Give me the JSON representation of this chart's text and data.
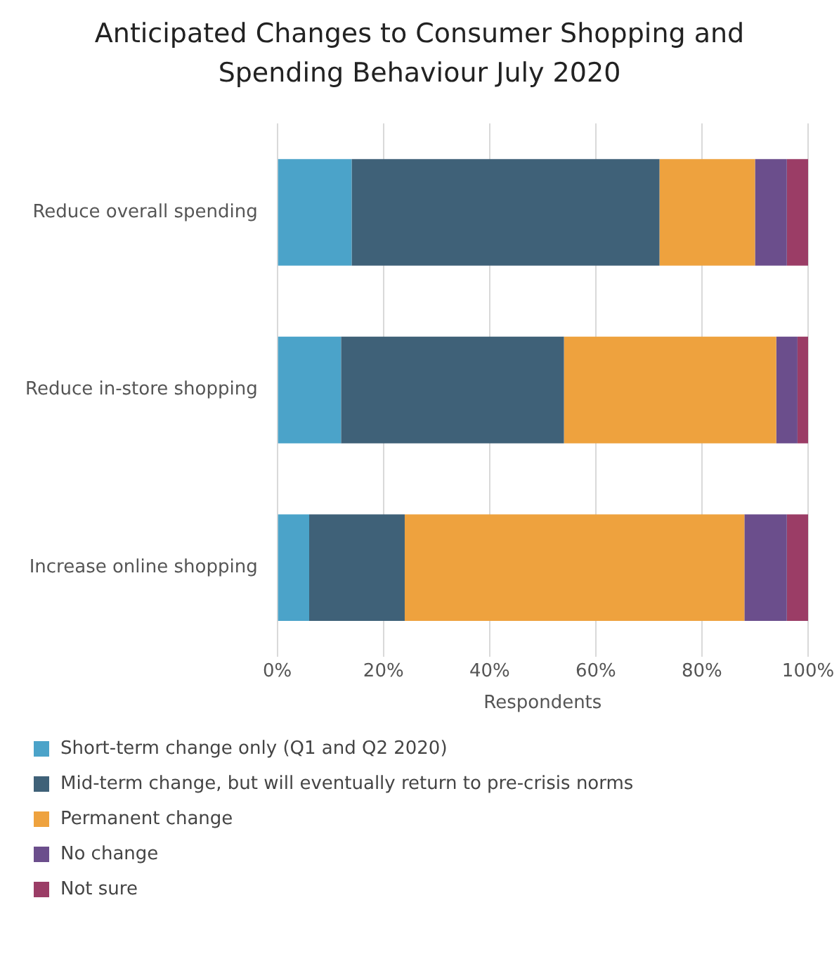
{
  "chart_data": {
    "type": "bar",
    "orientation": "horizontal",
    "stacked": true,
    "title": "Anticipated Changes to Consumer Shopping and Spending Behaviour July 2020",
    "xlabel": "Respondents",
    "categories": [
      "Reduce overall spending",
      "Reduce in-store shopping",
      "Increase online shopping"
    ],
    "series": [
      {
        "name": "Short-term change only (Q1 and Q2 2020)",
        "color": "#4ba3c9",
        "values": [
          14,
          12,
          6
        ]
      },
      {
        "name": "Mid-term change, but will eventually return to pre-crisis norms",
        "color": "#3f6178",
        "values": [
          58,
          42,
          18
        ]
      },
      {
        "name": "Permanent change",
        "color": "#eea23e",
        "values": [
          18,
          40,
          64
        ]
      },
      {
        "name": "No change",
        "color": "#6b4e8c",
        "values": [
          6,
          4,
          8
        ]
      },
      {
        "name": "Not sure",
        "color": "#9b3d66",
        "values": [
          4,
          2,
          4
        ]
      }
    ],
    "xlim": [
      0,
      100
    ],
    "xticks": [
      {
        "value": 0,
        "label": "0%"
      },
      {
        "value": 20,
        "label": "20%"
      },
      {
        "value": 40,
        "label": "40%"
      },
      {
        "value": 60,
        "label": "60%"
      },
      {
        "value": 80,
        "label": "80%"
      },
      {
        "value": 100,
        "label": "100%"
      }
    ],
    "grid": "x",
    "legend": "bottom"
  }
}
